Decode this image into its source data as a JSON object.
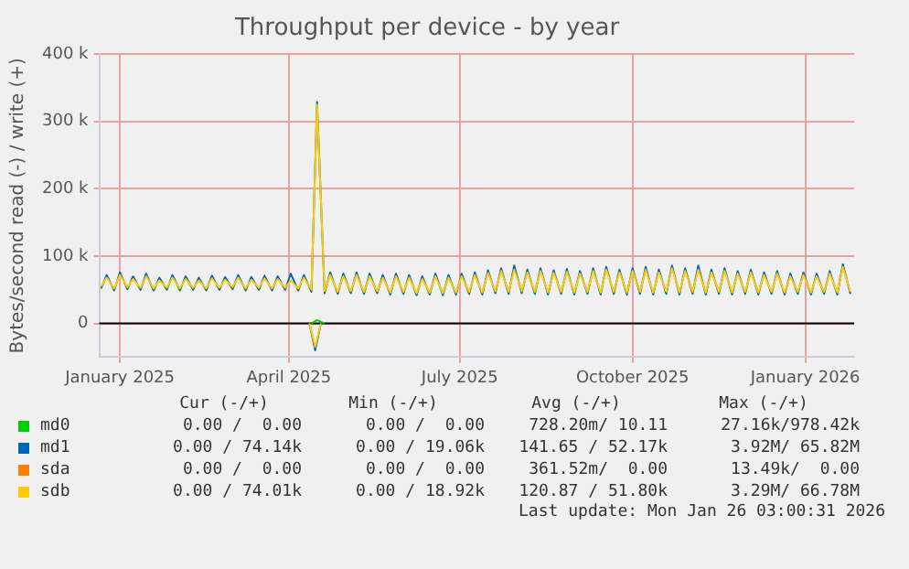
{
  "chart_data": {
    "type": "line",
    "title": "Throughput per device - by year",
    "ylabel": "Bytes/second read (-) / write (+)",
    "x": [
      "2024-12-22",
      "2024-12-25",
      "2024-12-29",
      "2025-01-01",
      "2025-01-05",
      "2025-01-08",
      "2025-01-12",
      "2025-01-15",
      "2025-01-19",
      "2025-01-22",
      "2025-01-26",
      "2025-01-29",
      "2025-02-02",
      "2025-02-05",
      "2025-02-09",
      "2025-02-12",
      "2025-02-16",
      "2025-02-19",
      "2025-02-23",
      "2025-02-26",
      "2025-03-02",
      "2025-03-05",
      "2025-03-09",
      "2025-03-12",
      "2025-03-16",
      "2025-03-19",
      "2025-03-23",
      "2025-03-26",
      "2025-03-30",
      "2025-04-02",
      "2025-04-06",
      "2025-04-09",
      "2025-04-13",
      "2025-04-16",
      "2025-04-20",
      "2025-04-23",
      "2025-04-27",
      "2025-04-30",
      "2025-05-04",
      "2025-05-07",
      "2025-05-11",
      "2025-05-14",
      "2025-05-18",
      "2025-05-21",
      "2025-05-25",
      "2025-05-28",
      "2025-06-01",
      "2025-06-04",
      "2025-06-08",
      "2025-06-11",
      "2025-06-15",
      "2025-06-18",
      "2025-06-22",
      "2025-06-25",
      "2025-06-29",
      "2025-07-02",
      "2025-07-06",
      "2025-07-09",
      "2025-07-13",
      "2025-07-16",
      "2025-07-20",
      "2025-07-23",
      "2025-07-27",
      "2025-07-30",
      "2025-08-03",
      "2025-08-06",
      "2025-08-10",
      "2025-08-13",
      "2025-08-17",
      "2025-08-20",
      "2025-08-24",
      "2025-08-27",
      "2025-08-31",
      "2025-09-03",
      "2025-09-07",
      "2025-09-10",
      "2025-09-14",
      "2025-09-17",
      "2025-09-21",
      "2025-09-24",
      "2025-09-28",
      "2025-10-01",
      "2025-10-05",
      "2025-10-08",
      "2025-10-12",
      "2025-10-15",
      "2025-10-19",
      "2025-10-22",
      "2025-10-26",
      "2025-10-29",
      "2025-11-02",
      "2025-11-05",
      "2025-11-09",
      "2025-11-12",
      "2025-11-16",
      "2025-11-19",
      "2025-11-23",
      "2025-11-26",
      "2025-11-30",
      "2025-12-03",
      "2025-12-07",
      "2025-12-10",
      "2025-12-14",
      "2025-12-17",
      "2025-12-21",
      "2025-12-24",
      "2025-12-28",
      "2025-12-31",
      "2026-01-04",
      "2026-01-07",
      "2026-01-11",
      "2026-01-14",
      "2026-01-18",
      "2026-01-21",
      "2026-01-25"
    ],
    "xlim": [
      "2024-12-21",
      "2026-01-27"
    ],
    "xticks": [
      {
        "value": "2025-01-01",
        "label": "January 2025"
      },
      {
        "value": "2025-04-01",
        "label": "April 2025"
      },
      {
        "value": "2025-07-01",
        "label": "July 2025"
      },
      {
        "value": "2025-10-01",
        "label": "October 2025"
      },
      {
        "value": "2026-01-01",
        "label": "January 2026"
      }
    ],
    "ylim": [
      -50000,
      400000
    ],
    "yticks": [
      0,
      {
        "value": 100000,
        "label": "100 k"
      },
      {
        "value": 200000,
        "label": "200 k"
      },
      {
        "value": 300000,
        "label": "300 k"
      },
      {
        "value": 400000,
        "label": "400 k"
      }
    ],
    "grid": true,
    "legend": "bottom",
    "marker": "none",
    "line_style": "solid",
    "ref_lines": [
      {
        "axis": "y",
        "value": 0,
        "color": "#000000"
      }
    ],
    "series": [
      {
        "name": "md0",
        "color": "#00cc00",
        "x": [
          "2025-04-13",
          "2025-04-16",
          "2025-04-20"
        ],
        "values": [
          0,
          5000,
          0
        ]
      },
      {
        "name": "md1",
        "color": "#0066b3",
        "values": [
          52000,
          72000,
          49000,
          76000,
          51000,
          70000,
          50000,
          74000,
          49000,
          68000,
          50000,
          72000,
          49000,
          70000,
          50000,
          68000,
          49000,
          71000,
          50000,
          69000,
          51000,
          72000,
          49000,
          69000,
          50000,
          71000,
          49000,
          70000,
          50000,
          74000,
          49000,
          72000,
          47000,
          329000,
          45000,
          76000,
          44000,
          74000,
          45000,
          76000,
          44000,
          74000,
          45000,
          72000,
          43000,
          74000,
          44000,
          72000,
          42000,
          70000,
          43000,
          74000,
          42000,
          72000,
          43000,
          74000,
          44000,
          76000,
          43000,
          79000,
          45000,
          82000,
          44000,
          86000,
          45000,
          80000,
          44000,
          82000,
          43000,
          79000,
          44000,
          81000,
          43000,
          78000,
          44000,
          82000,
          43000,
          84000,
          44000,
          80000,
          43000,
          82000,
          44000,
          84000,
          43000,
          80000,
          44000,
          86000,
          43000,
          82000,
          44000,
          86000,
          43000,
          80000,
          44000,
          82000,
          43000,
          78000,
          44000,
          80000,
          43000,
          76000,
          44000,
          78000,
          43000,
          74000,
          44000,
          76000,
          43000,
          74000,
          44000,
          78000,
          43000,
          88000,
          44000
        ]
      },
      {
        "name": "sda",
        "color": "#ff8000",
        "values": [
          null,
          null,
          null,
          null,
          null,
          null,
          null,
          null,
          null,
          null,
          null,
          null,
          null,
          null,
          null,
          null,
          null,
          null,
          null,
          null,
          null,
          null,
          null,
          null,
          null,
          null,
          null,
          null,
          null,
          null,
          null,
          null,
          null,
          null,
          null,
          null,
          null,
          null,
          null,
          null,
          null,
          null,
          null,
          null,
          null,
          null,
          null,
          null,
          null,
          null,
          null,
          null,
          null,
          null,
          null,
          null,
          null,
          null,
          null,
          null,
          null,
          null,
          null,
          null,
          null,
          null,
          null,
          null,
          null,
          null,
          null,
          null,
          null,
          null,
          null,
          null,
          null,
          null,
          null,
          null,
          null,
          null,
          null,
          null,
          null,
          null,
          null,
          null,
          null,
          null,
          null,
          null,
          null,
          null,
          null,
          null,
          null,
          null,
          null,
          null,
          null,
          null,
          null,
          null,
          null,
          null,
          null,
          null,
          null,
          null,
          null,
          null,
          null,
          null,
          null
        ]
      },
      {
        "name": "sdb",
        "color": "#ffcc00",
        "values": [
          55000,
          68000,
          52000,
          72000,
          54000,
          66000,
          53000,
          70000,
          52000,
          64000,
          53000,
          68000,
          52000,
          66000,
          53000,
          64000,
          52000,
          67000,
          53000,
          65000,
          54000,
          68000,
          52000,
          65000,
          53000,
          67000,
          52000,
          66000,
          53000,
          64000,
          52000,
          68000,
          50000,
          325000,
          48000,
          72000,
          47000,
          70000,
          48000,
          72000,
          47000,
          70000,
          48000,
          68000,
          46000,
          70000,
          47000,
          68000,
          45000,
          66000,
          46000,
          70000,
          45000,
          68000,
          46000,
          70000,
          47000,
          72000,
          46000,
          75000,
          48000,
          78000,
          47000,
          80000,
          48000,
          76000,
          47000,
          78000,
          46000,
          75000,
          47000,
          77000,
          46000,
          74000,
          47000,
          78000,
          46000,
          80000,
          47000,
          76000,
          46000,
          78000,
          47000,
          80000,
          46000,
          76000,
          47000,
          82000,
          46000,
          78000,
          47000,
          80000,
          46000,
          76000,
          47000,
          78000,
          46000,
          74000,
          47000,
          76000,
          46000,
          72000,
          47000,
          74000,
          46000,
          70000,
          47000,
          72000,
          46000,
          70000,
          47000,
          74000,
          46000,
          84000,
          47000
        ]
      },
      {
        "color": "#0066b3",
        "x": [
          "2025-04-12",
          "2025-04-15",
          "2025-04-18"
        ],
        "values": [
          0,
          -40000,
          0
        ]
      },
      {
        "color": "#ffcc00",
        "x": [
          "2025-04-12",
          "2025-04-15",
          "2025-04-18"
        ],
        "values": [
          0,
          -35000,
          0
        ]
      }
    ],
    "annotations": [
      "Cur (-/+)",
      "Min (-/+)",
      "Avg (-/+)",
      "Max (-/+)",
      "0.00 /  0.00",
      "0.00 /  0.00",
      "728.20m/ 10.11",
      "27.16k/978.42k",
      "0.00 / 74.14k",
      "0.00 / 19.06k",
      "141.65 / 52.17k",
      " 3.92M/ 65.82M",
      "0.00 /  0.00",
      "0.00 /  0.00",
      "361.52m/  0.00",
      "13.49k/  0.00",
      "0.00 / 74.01k",
      "0.00 / 18.92k",
      "120.87 / 51.80k",
      " 3.29M/ 66.78M",
      "Last update: Mon Jan 26 03:00:31 2026"
    ]
  }
}
